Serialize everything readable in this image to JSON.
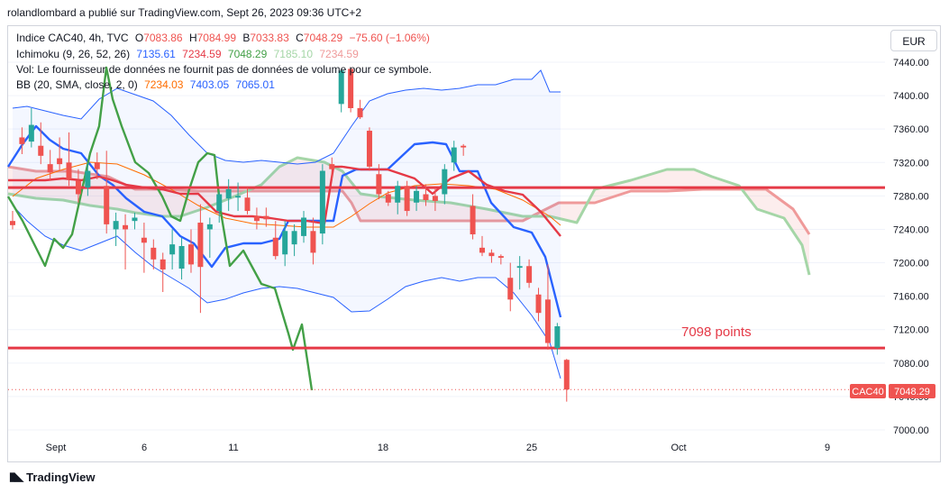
{
  "header": {
    "publisher_line": "rolandlombard a publié sur TradingView.com, Sept 26, 2023 09:36 UTC+2"
  },
  "legend": {
    "line1": {
      "symbol": "Indice CAC40, 4h, TVC",
      "o_label": "O",
      "o": "7083.86",
      "h_label": "H",
      "h": "7084.99",
      "b_label": "B",
      "b": "7033.83",
      "c_label": "C",
      "c": "7048.29",
      "change": "−75.60 (−1.06%)"
    },
    "line2": {
      "label": "Ichimoku (9, 26, 52, 26)",
      "v1": "7135.61",
      "v2": "7234.59",
      "v3": "7048.29",
      "v4": "7185.10",
      "v5": "7234.59"
    },
    "line3": {
      "text": "Vol: Le fournisseur de données ne fournit pas de données de volume pour ce symbole."
    },
    "line4": {
      "label": "BB (20, SMA, close, 2, 0)",
      "v1": "7234.03",
      "v2": "7403.05",
      "v3": "7065.01"
    }
  },
  "currency": "EUR",
  "annotation": {
    "text": "7098 points"
  },
  "price_tag": {
    "symbol": "CAC40",
    "price": "7048.29"
  },
  "footer": {
    "logo_text": "TradingView"
  },
  "colors": {
    "up": "#26a69a",
    "down": "#ef5350",
    "conversion": "#2962ff",
    "base": "#e53946",
    "lagging": "#43a047",
    "spanA": "#a5d6a7",
    "spanB": "#ef9a9a",
    "bb_band": "#2962ff",
    "bb_basis": "#ff6d00",
    "hline": "#e53946"
  },
  "chart_data": {
    "type": "candlestick",
    "y_axis": {
      "ticks": [
        7000,
        7040,
        7080,
        7120,
        7160,
        7200,
        7240,
        7280,
        7320,
        7360,
        7400,
        7440
      ],
      "tick_labels": [
        "7000.00",
        "7040.00",
        "7080.00",
        "7120.00",
        "7160.00",
        "7200.00",
        "7240.00",
        "7280.00",
        "7320.00",
        "7360.00",
        "7400.00",
        "7440.00"
      ],
      "range": [
        6990,
        7455
      ]
    },
    "x_axis": {
      "tick_labels": [
        "Sept",
        "6",
        "11",
        "18",
        "25",
        "Oct",
        "9"
      ]
    },
    "horizontal_levels": [
      7290,
      7098
    ],
    "candles": [
      {
        "o": 7250,
        "h": 7262,
        "l": 7240,
        "c": 7245
      },
      {
        "o": 7350,
        "h": 7362,
        "l": 7330,
        "c": 7342
      },
      {
        "o": 7345,
        "h": 7385,
        "l": 7338,
        "c": 7365
      },
      {
        "o": 7340,
        "h": 7368,
        "l": 7318,
        "c": 7328
      },
      {
        "o": 7318,
        "h": 7335,
        "l": 7298,
        "c": 7308
      },
      {
        "o": 7325,
        "h": 7350,
        "l": 7310,
        "c": 7318
      },
      {
        "o": 7320,
        "h": 7356,
        "l": 7292,
        "c": 7300
      },
      {
        "o": 7298,
        "h": 7312,
        "l": 7272,
        "c": 7282
      },
      {
        "o": 7290,
        "h": 7320,
        "l": 7280,
        "c": 7310
      },
      {
        "o": 7320,
        "h": 7332,
        "l": 7300,
        "c": 7312
      },
      {
        "o": 7292,
        "h": 7334,
        "l": 7235,
        "c": 7246
      },
      {
        "o": 7240,
        "h": 7260,
        "l": 7220,
        "c": 7250
      },
      {
        "o": 7245,
        "h": 7258,
        "l": 7192,
        "c": 7240
      },
      {
        "o": 7250,
        "h": 7260,
        "l": 7240,
        "c": 7254
      },
      {
        "o": 7230,
        "h": 7248,
        "l": 7188,
        "c": 7224
      },
      {
        "o": 7218,
        "h": 7228,
        "l": 7192,
        "c": 7204
      },
      {
        "o": 7204,
        "h": 7212,
        "l": 7165,
        "c": 7192
      },
      {
        "o": 7210,
        "h": 7240,
        "l": 7192,
        "c": 7222
      },
      {
        "o": 7193,
        "h": 7230,
        "l": 7180,
        "c": 7220
      },
      {
        "o": 7222,
        "h": 7240,
        "l": 7188,
        "c": 7198
      },
      {
        "o": 7248,
        "h": 7270,
        "l": 7140,
        "c": 7195
      },
      {
        "o": 7240,
        "h": 7254,
        "l": 7206,
        "c": 7246
      },
      {
        "o": 7262,
        "h": 7285,
        "l": 7248,
        "c": 7282
      },
      {
        "o": 7277,
        "h": 7300,
        "l": 7262,
        "c": 7288
      },
      {
        "o": 7278,
        "h": 7296,
        "l": 7262,
        "c": 7280
      },
      {
        "o": 7278,
        "h": 7290,
        "l": 7258,
        "c": 7262
      },
      {
        "o": 7256,
        "h": 7266,
        "l": 7240,
        "c": 7250
      },
      {
        "o": 7256,
        "h": 7266,
        "l": 7243,
        "c": 7252
      },
      {
        "o": 7230,
        "h": 7250,
        "l": 7204,
        "c": 7208
      },
      {
        "o": 7210,
        "h": 7250,
        "l": 7196,
        "c": 7238
      },
      {
        "o": 7222,
        "h": 7246,
        "l": 7208,
        "c": 7238
      },
      {
        "o": 7232,
        "h": 7262,
        "l": 7224,
        "c": 7254
      },
      {
        "o": 7238,
        "h": 7254,
        "l": 7198,
        "c": 7212
      },
      {
        "o": 7235,
        "h": 7318,
        "l": 7222,
        "c": 7310
      },
      {
        "o": 7318,
        "h": 7326,
        "l": 7300,
        "c": 7312
      },
      {
        "o": 7390,
        "h": 7432,
        "l": 7380,
        "c": 7430
      },
      {
        "o": 7432,
        "h": 7434,
        "l": 7380,
        "c": 7385
      },
      {
        "o": 7385,
        "h": 7395,
        "l": 7372,
        "c": 7374
      },
      {
        "o": 7358,
        "h": 7362,
        "l": 7310,
        "c": 7315
      },
      {
        "o": 7306,
        "h": 7318,
        "l": 7276,
        "c": 7282
      },
      {
        "o": 7282,
        "h": 7286,
        "l": 7268,
        "c": 7272
      },
      {
        "o": 7272,
        "h": 7298,
        "l": 7258,
        "c": 7292
      },
      {
        "o": 7292,
        "h": 7298,
        "l": 7256,
        "c": 7262
      },
      {
        "o": 7272,
        "h": 7292,
        "l": 7262,
        "c": 7286
      },
      {
        "o": 7282,
        "h": 7294,
        "l": 7268,
        "c": 7275
      },
      {
        "o": 7280,
        "h": 7290,
        "l": 7262,
        "c": 7274
      },
      {
        "o": 7282,
        "h": 7318,
        "l": 7270,
        "c": 7312
      },
      {
        "o": 7320,
        "h": 7346,
        "l": 7310,
        "c": 7338
      },
      {
        "o": 7340,
        "h": 7342,
        "l": 7328,
        "c": 7338
      },
      {
        "o": 7268,
        "h": 7282,
        "l": 7228,
        "c": 7234
      },
      {
        "o": 7218,
        "h": 7232,
        "l": 7208,
        "c": 7212
      },
      {
        "o": 7212,
        "h": 7216,
        "l": 7200,
        "c": 7208
      },
      {
        "o": 7208,
        "h": 7210,
        "l": 7198,
        "c": 7206
      },
      {
        "o": 7182,
        "h": 7200,
        "l": 7142,
        "c": 7156
      },
      {
        "o": 7194,
        "h": 7208,
        "l": 7168,
        "c": 7196
      },
      {
        "o": 7196,
        "h": 7204,
        "l": 7170,
        "c": 7176
      },
      {
        "o": 7162,
        "h": 7170,
        "l": 7130,
        "c": 7140
      },
      {
        "o": 7156,
        "h": 7198,
        "l": 7096,
        "c": 7104
      },
      {
        "o": 7098,
        "h": 7128,
        "l": 7090,
        "c": 7124
      },
      {
        "o": 7083.86,
        "h": 7084.99,
        "l": 7033.83,
        "c": 7048.29
      }
    ]
  }
}
